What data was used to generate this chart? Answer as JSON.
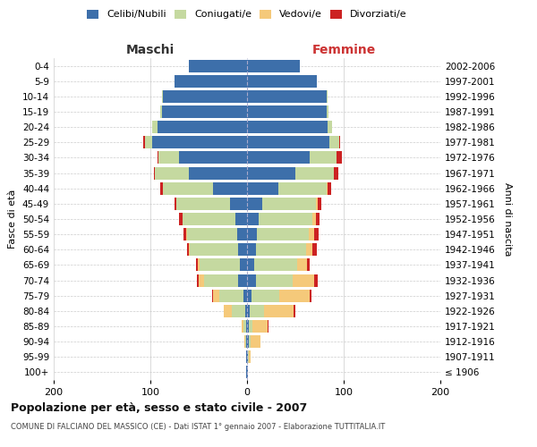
{
  "age_groups": [
    "100+",
    "95-99",
    "90-94",
    "85-89",
    "80-84",
    "75-79",
    "70-74",
    "65-69",
    "60-64",
    "55-59",
    "50-54",
    "45-49",
    "40-44",
    "35-39",
    "30-34",
    "25-29",
    "20-24",
    "15-19",
    "10-14",
    "5-9",
    "0-4"
  ],
  "birth_years": [
    "≤ 1906",
    "1907-1911",
    "1912-1916",
    "1917-1921",
    "1922-1926",
    "1927-1931",
    "1932-1936",
    "1937-1941",
    "1942-1946",
    "1947-1951",
    "1952-1956",
    "1957-1961",
    "1962-1966",
    "1967-1971",
    "1972-1976",
    "1977-1981",
    "1982-1986",
    "1987-1991",
    "1992-1996",
    "1997-2001",
    "2002-2006"
  ],
  "maschi": {
    "celibi": [
      1,
      1,
      1,
      1,
      2,
      4,
      9,
      7,
      9,
      10,
      12,
      18,
      35,
      60,
      70,
      98,
      93,
      88,
      87,
      75,
      60
    ],
    "coniugati": [
      0,
      0,
      1,
      3,
      14,
      25,
      35,
      42,
      50,
      52,
      55,
      55,
      52,
      35,
      22,
      8,
      5,
      2,
      1,
      0,
      0
    ],
    "vedovi": [
      0,
      0,
      1,
      2,
      8,
      6,
      6,
      2,
      1,
      1,
      0,
      0,
      0,
      0,
      0,
      0,
      0,
      0,
      0,
      0,
      0
    ],
    "divorziati": [
      0,
      0,
      0,
      0,
      0,
      1,
      2,
      2,
      2,
      3,
      3,
      2,
      3,
      1,
      1,
      1,
      0,
      0,
      0,
      0,
      0
    ]
  },
  "femmine": {
    "nubili": [
      1,
      1,
      2,
      2,
      3,
      5,
      9,
      7,
      9,
      10,
      12,
      16,
      32,
      50,
      65,
      85,
      83,
      82,
      82,
      72,
      55
    ],
    "coniugate": [
      0,
      1,
      2,
      4,
      15,
      28,
      38,
      45,
      52,
      54,
      56,
      55,
      50,
      40,
      28,
      10,
      5,
      2,
      1,
      0,
      0
    ],
    "vedove": [
      0,
      2,
      10,
      15,
      30,
      32,
      22,
      10,
      7,
      5,
      3,
      2,
      1,
      0,
      0,
      0,
      0,
      0,
      0,
      0,
      0
    ],
    "divorziate": [
      0,
      0,
      0,
      1,
      2,
      2,
      4,
      3,
      4,
      5,
      4,
      4,
      4,
      4,
      5,
      1,
      0,
      0,
      0,
      0,
      0
    ]
  },
  "colors": {
    "celibi_nubili": "#3d6faa",
    "coniugati_e": "#c5d9a0",
    "vedovi_e": "#f5c97a",
    "divorziati_e": "#cc2222"
  },
  "xlim": 200,
  "title": "Popolazione per età, sesso e stato civile - 2007",
  "subtitle": "COMUNE DI FALCIANO DEL MASSICO (CE) - Dati ISTAT 1° gennaio 2007 - Elaborazione TUTTITALIA.IT",
  "xlabel_left": "Maschi",
  "xlabel_right": "Femmine",
  "ylabel_left": "Fasce di età",
  "ylabel_right": "Anni di nascita",
  "legend_labels": [
    "Celibi/Nubili",
    "Coniugati/e",
    "Vedovi/e",
    "Divorziati/e"
  ],
  "bg_color": "#ffffff",
  "grid_color": "#cccccc"
}
